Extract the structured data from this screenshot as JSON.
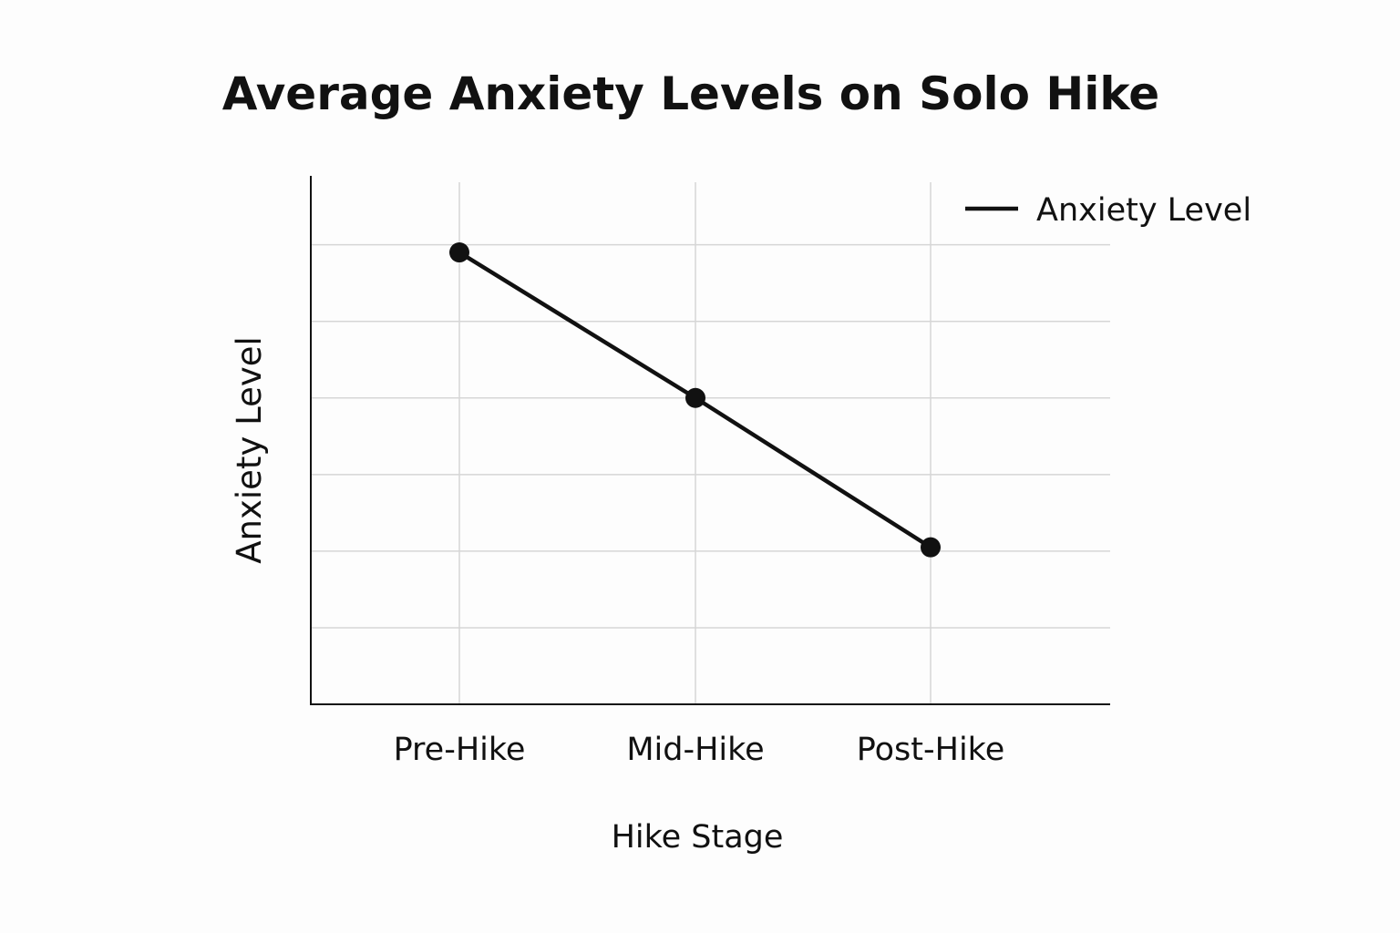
{
  "chart_data": {
    "type": "line",
    "title": "Average Anxiety Levels on Solo Hike",
    "xlabel": "Hike Stage",
    "ylabel": "Anxiety Level",
    "categories": [
      "Pre-Hike",
      "Mid-Hike",
      "Post-Hike"
    ],
    "series": [
      {
        "name": "Anxiety Level",
        "values": [
          5.9,
          4.0,
          2.05
        ],
        "color": "#111111"
      }
    ],
    "ylim": [
      0,
      6.9
    ],
    "y_gridlines": [
      1,
      2,
      3,
      4,
      5,
      6
    ],
    "y_tick_labels_shown": false,
    "grid": true,
    "legend": "top-right"
  }
}
